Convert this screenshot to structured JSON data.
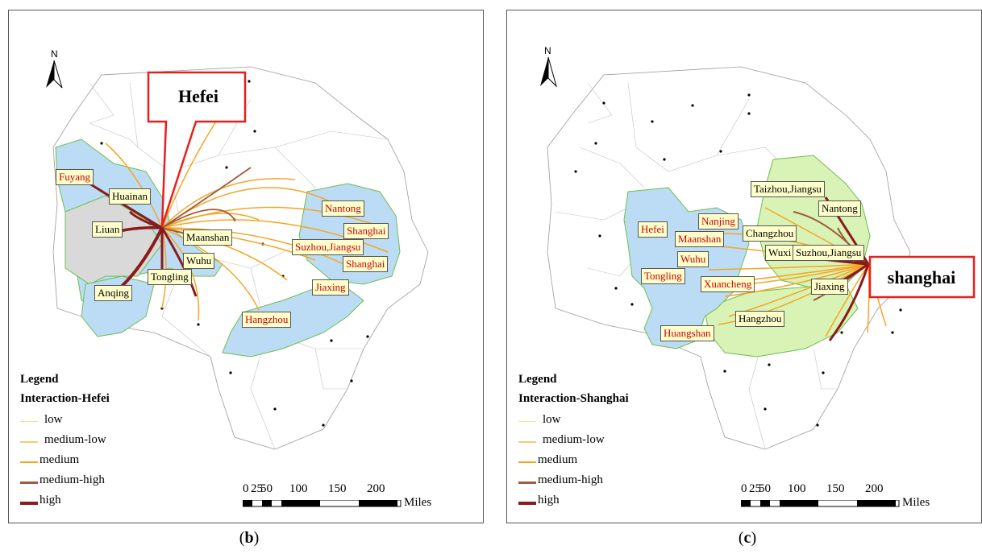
{
  "colors": {
    "focus_region": "#bcdcf5",
    "secondary_region": "#d9f2b5",
    "gray_region": "#d9d9d9",
    "low": "#f0e0a0",
    "medium_low": "#f5c97a",
    "medium": "#f5a623",
    "medium_high": "#a05a3c",
    "high": "#8b1a1a",
    "highlight_box": "#e8201c",
    "label_bg": "#ffffcc",
    "label_red": "#cc0000"
  },
  "panels": [
    {
      "caption_letter": "b",
      "north": "N",
      "focus_label": "Hefei",
      "legend": {
        "title": "Legend",
        "subtitle": "Interaction-Hefei",
        "items": [
          "low",
          "medium-low",
          "medium",
          "medium-high",
          "high"
        ]
      },
      "scale": {
        "ticks": [
          "0",
          "25",
          "50",
          "100",
          "150",
          "200"
        ],
        "unit": "Miles"
      },
      "labels": [
        {
          "text": "Fuyang",
          "red": true
        },
        {
          "text": "Huainan",
          "red": false
        },
        {
          "text": "Liuan",
          "red": false
        },
        {
          "text": "Maanshan",
          "red": false
        },
        {
          "text": "Wuhu",
          "red": false
        },
        {
          "text": "Tongling",
          "red": false
        },
        {
          "text": "Anqing",
          "red": false
        },
        {
          "text": "Nantong",
          "red": true
        },
        {
          "text": "Shanghai",
          "red": true
        },
        {
          "text": "Suzhou,Jiangsu",
          "red": true
        },
        {
          "text": "Shanghai",
          "red": true
        },
        {
          "text": "Jiaxing",
          "red": true
        },
        {
          "text": "Hangzhou",
          "red": true
        }
      ]
    },
    {
      "caption_letter": "c",
      "north": "N",
      "focus_label": "shanghai",
      "legend": {
        "title": "Legend",
        "subtitle": "Interaction-Shanghai",
        "items": [
          "low",
          "medium-low",
          "medium",
          "medium-high",
          "high"
        ]
      },
      "scale": {
        "ticks": [
          "0",
          "25",
          "50",
          "100",
          "150",
          "200"
        ],
        "unit": "Miles"
      },
      "labels": [
        {
          "text": "Taizhou,Jiangsu",
          "red": false
        },
        {
          "text": "Nantong",
          "red": false
        },
        {
          "text": "Nanjing",
          "red": true
        },
        {
          "text": "Hefei",
          "red": true
        },
        {
          "text": "Maanshan",
          "red": true
        },
        {
          "text": "Changzhou",
          "red": false
        },
        {
          "text": "Wuxi",
          "red": false
        },
        {
          "text": "Suzhou,Jiangsu",
          "red": false
        },
        {
          "text": "Wuhu",
          "red": true
        },
        {
          "text": "Tongling",
          "red": true
        },
        {
          "text": "Xuancheng",
          "red": true
        },
        {
          "text": "Jiaxing",
          "red": false
        },
        {
          "text": "Hangzhou",
          "red": false
        },
        {
          "text": "Huangshan",
          "red": true
        }
      ]
    }
  ]
}
